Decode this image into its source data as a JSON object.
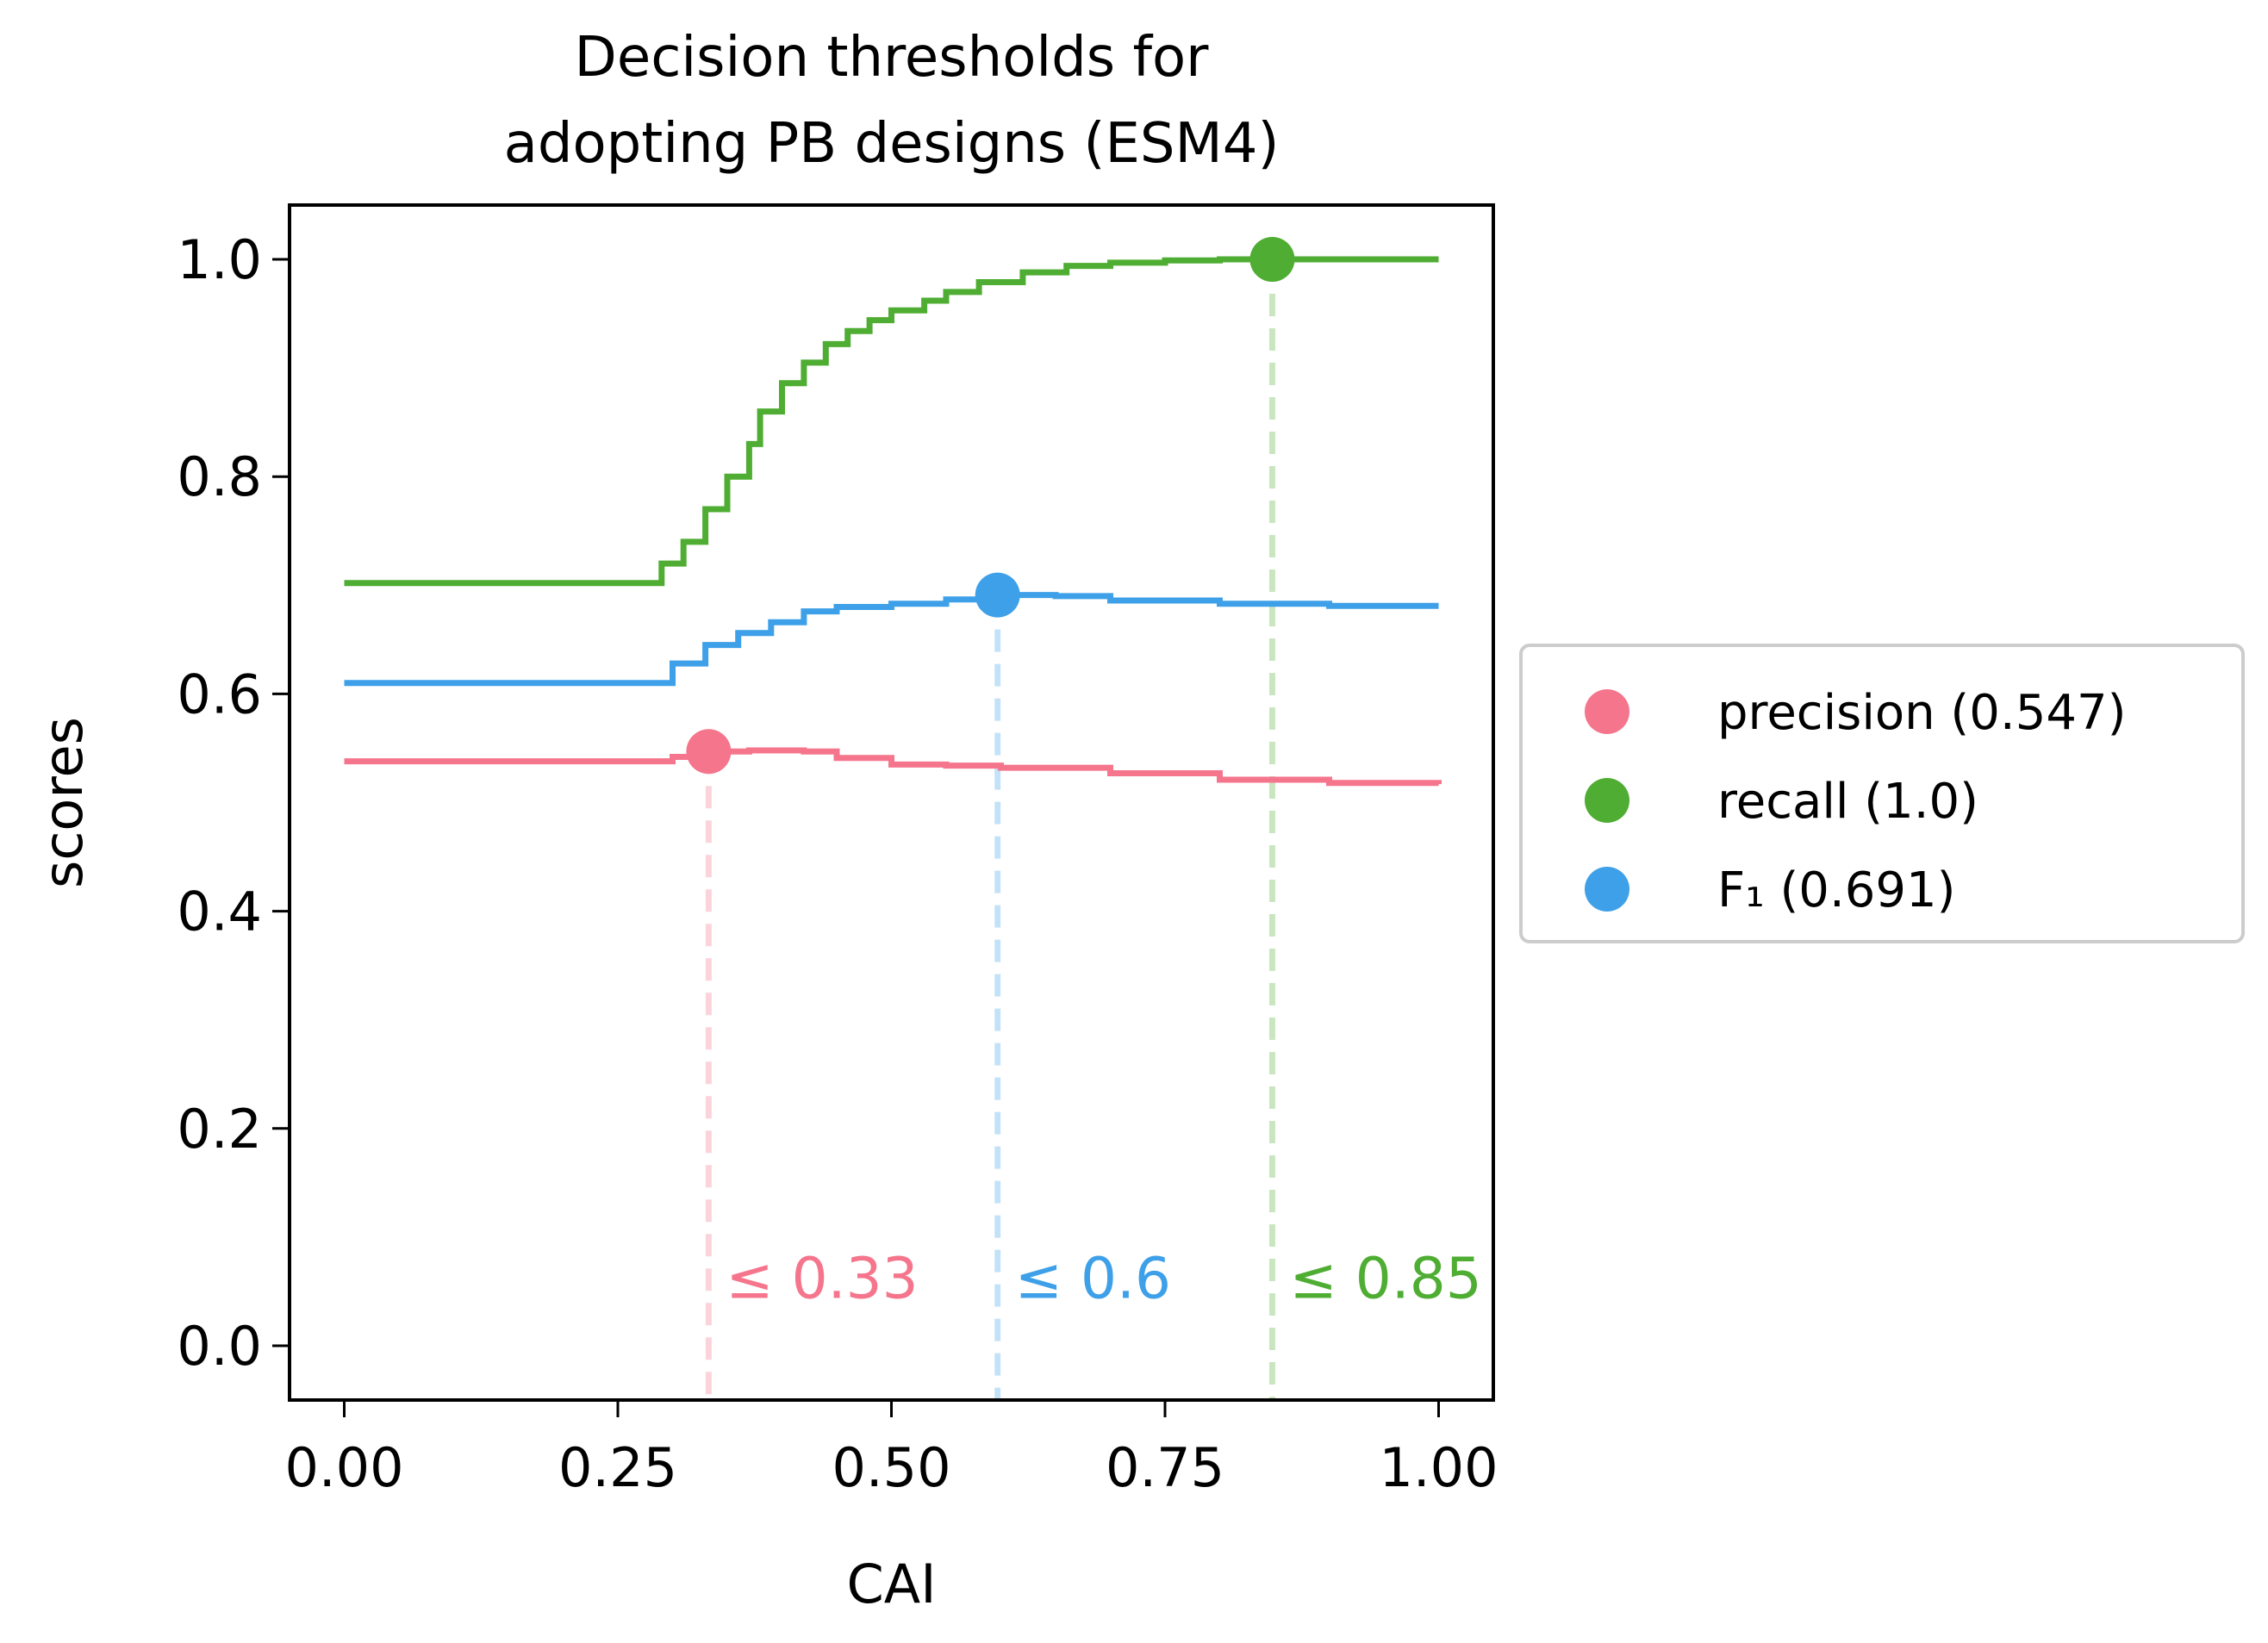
{
  "chart_data": {
    "type": "line",
    "title": [
      "Decision thresholds for",
      "adopting PB designs (ESM4)"
    ],
    "xlabel": "CAI",
    "ylabel": "scores",
    "xlim": [
      -0.05,
      1.05
    ],
    "ylim": [
      -0.05,
      1.05
    ],
    "xticks": [
      0.0,
      0.25,
      0.5,
      0.75,
      1.0
    ],
    "xtick_labels": [
      "0.00",
      "0.25",
      "0.50",
      "0.75",
      "1.00"
    ],
    "yticks": [
      0.0,
      0.2,
      0.4,
      0.6,
      0.8,
      1.0
    ],
    "ytick_labels": [
      "0.0",
      "0.2",
      "0.4",
      "0.6",
      "0.8",
      "1.0"
    ],
    "grid": false,
    "legend_position": "outside-right",
    "series": [
      {
        "name": "precision",
        "legend_label": "precision (0.547)",
        "color": "#f5758c",
        "x": [
          0.0,
          0.27,
          0.3,
          0.33,
          0.37,
          0.42,
          0.45,
          0.5,
          0.55,
          0.6,
          0.7,
          0.8,
          0.9,
          1.0
        ],
        "y": [
          0.538,
          0.538,
          0.542,
          0.547,
          0.548,
          0.547,
          0.541,
          0.535,
          0.534,
          0.532,
          0.527,
          0.521,
          0.518,
          0.517
        ],
        "best_x": 0.333,
        "best_y": 0.547,
        "threshold_label": "≤ 0.33"
      },
      {
        "name": "recall",
        "legend_label": "recall (1.0)",
        "color": "#4ead32",
        "x": [
          0.0,
          0.27,
          0.29,
          0.31,
          0.33,
          0.35,
          0.37,
          0.38,
          0.4,
          0.42,
          0.44,
          0.46,
          0.48,
          0.5,
          0.53,
          0.55,
          0.58,
          0.62,
          0.66,
          0.7,
          0.75,
          0.8,
          0.85,
          1.0
        ],
        "y": [
          0.702,
          0.702,
          0.72,
          0.74,
          0.77,
          0.8,
          0.83,
          0.86,
          0.886,
          0.905,
          0.922,
          0.934,
          0.944,
          0.953,
          0.962,
          0.97,
          0.979,
          0.988,
          0.994,
          0.997,
          0.999,
          1.0,
          1.0,
          1.0
        ],
        "best_x": 0.848,
        "best_y": 1.0,
        "threshold_label": "≤ 0.85"
      },
      {
        "name": "F1",
        "legend_label": "F₁ (0.691)",
        "color": "#3ea0e8",
        "x": [
          0.0,
          0.27,
          0.3,
          0.33,
          0.36,
          0.39,
          0.42,
          0.45,
          0.5,
          0.55,
          0.6,
          0.65,
          0.7,
          0.8,
          0.9,
          1.0
        ],
        "y": [
          0.61,
          0.61,
          0.628,
          0.645,
          0.656,
          0.666,
          0.676,
          0.68,
          0.683,
          0.687,
          0.691,
          0.69,
          0.686,
          0.683,
          0.681,
          0.681
        ],
        "best_x": 0.597,
        "best_y": 0.691,
        "threshold_label": "≤ 0.6"
      }
    ]
  }
}
